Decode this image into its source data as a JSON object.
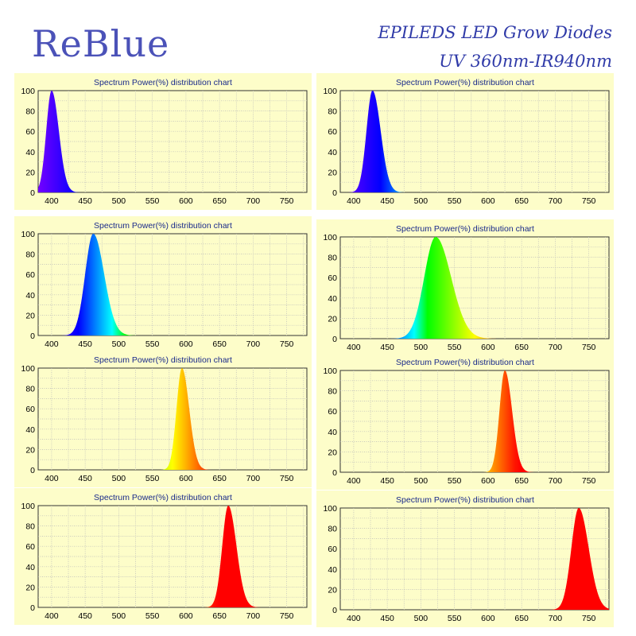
{
  "brand": "ReBlue",
  "headline": {
    "line1": "EPILEDS LED Grow Diodes",
    "line2": "UV 360nm-IR940nm"
  },
  "chart_data": [
    {
      "type": "area",
      "title": "Spectrum Power(%) distribution chart",
      "peak": 400,
      "width": 8,
      "xlim": [
        380,
        780
      ],
      "ylim": [
        0,
        100
      ],
      "xticks": [
        400,
        450,
        500,
        550,
        600,
        650,
        700,
        750
      ],
      "yticks": [
        0,
        20,
        40,
        60,
        80,
        100
      ],
      "grid": true
    },
    {
      "type": "area",
      "title": "Spectrum Power(%) distribution chart",
      "peak": 428,
      "width": 9,
      "xlim": [
        380,
        780
      ],
      "ylim": [
        0,
        100
      ],
      "xticks": [
        400,
        450,
        500,
        550,
        600,
        650,
        700,
        750
      ],
      "yticks": [
        0,
        20,
        40,
        60,
        80,
        100
      ],
      "grid": true
    },
    {
      "type": "area",
      "title": "Spectrum Power(%) distribution chart",
      "peak": 462,
      "width": 12,
      "xlim": [
        380,
        780
      ],
      "ylim": [
        0,
        100
      ],
      "xticks": [
        400,
        450,
        500,
        550,
        600,
        650,
        700,
        750
      ],
      "yticks": [
        0,
        20,
        40,
        60,
        80,
        100
      ],
      "grid": true
    },
    {
      "type": "area",
      "title": "Spectrum Power(%) distribution chart",
      "peak": 522,
      "width": 17,
      "xlim": [
        380,
        780
      ],
      "ylim": [
        0,
        100
      ],
      "xticks": [
        400,
        450,
        500,
        550,
        600,
        650,
        700,
        750
      ],
      "yticks": [
        0,
        20,
        40,
        60,
        80,
        100
      ],
      "grid": true
    },
    {
      "type": "area",
      "title": "Spectrum Power(%) distribution chart",
      "peak": 594,
      "width": 8,
      "xlim": [
        380,
        780
      ],
      "ylim": [
        0,
        100
      ],
      "xticks": [
        400,
        450,
        500,
        550,
        600,
        650,
        700,
        750
      ],
      "yticks": [
        0,
        20,
        40,
        60,
        80,
        100
      ],
      "grid": true
    },
    {
      "type": "area",
      "title": "Spectrum Power(%) distribution chart",
      "peak": 625,
      "width": 8,
      "xlim": [
        380,
        780
      ],
      "ylim": [
        0,
        100
      ],
      "xticks": [
        400,
        450,
        500,
        550,
        600,
        650,
        700,
        750
      ],
      "yticks": [
        0,
        20,
        40,
        60,
        80,
        100
      ],
      "grid": true
    },
    {
      "type": "area",
      "title": "Spectrum Power(%) distribution chart",
      "peak": 663,
      "width": 9,
      "xlim": [
        380,
        780
      ],
      "ylim": [
        0,
        100
      ],
      "xticks": [
        400,
        450,
        500,
        550,
        600,
        650,
        700,
        750
      ],
      "yticks": [
        0,
        20,
        40,
        60,
        80,
        100
      ],
      "grid": true
    },
    {
      "type": "area",
      "title": "Spectrum Power(%) distribution chart",
      "peak": 735,
      "width": 11,
      "xlim": [
        380,
        780
      ],
      "ylim": [
        0,
        100
      ],
      "xticks": [
        400,
        450,
        500,
        550,
        600,
        650,
        700,
        750
      ],
      "yticks": [
        0,
        20,
        40,
        60,
        80,
        100
      ],
      "grid": true
    }
  ]
}
